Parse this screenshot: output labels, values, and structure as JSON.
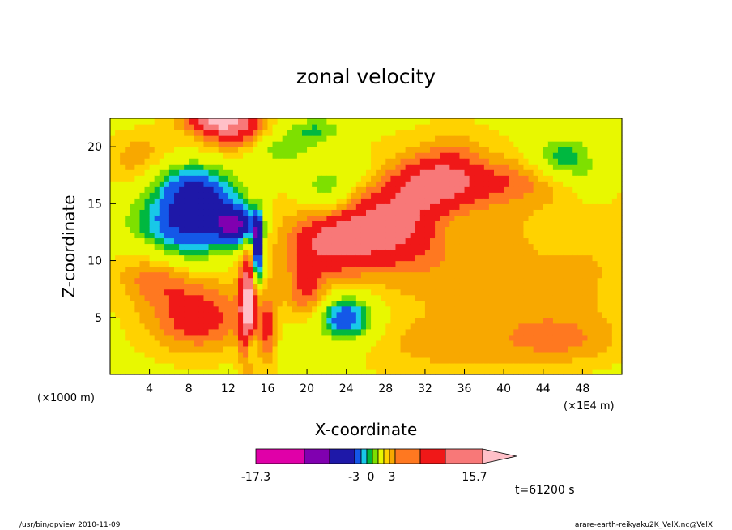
{
  "chart_data": {
    "type": "heatmap",
    "title": "zonal velocity",
    "xlabel": "X-coordinate",
    "ylabel": "Z-coordinate",
    "x_unit_left": "(×1000 m)",
    "x_unit_right": "(×1E4 m)",
    "xlim": [
      0,
      52
    ],
    "ylim": [
      0,
      22.5
    ],
    "x_ticks": [
      4,
      8,
      12,
      16,
      20,
      24,
      28,
      32,
      36,
      40,
      44,
      48
    ],
    "y_ticks": [
      5,
      10,
      15,
      20
    ],
    "colorbar": {
      "levels": [
        -17.3,
        -3,
        0,
        3,
        15.7
      ],
      "labels": [
        "-17.3",
        "-3",
        "0",
        "3",
        "15.7"
      ],
      "colors": [
        "#e000a8",
        "#8000b0",
        "#1e18a8",
        "#1458e8",
        "#18c8e8",
        "#00b840",
        "#7ee000",
        "#e8f800",
        "#ffd200",
        "#f8a800",
        "#ff7820",
        "#f01818",
        "#f87878",
        "#ffc0c8"
      ]
    },
    "regions": [
      {
        "x": 32,
        "z": 11,
        "v": 3,
        "rx": 30,
        "rz": 11.5
      },
      {
        "x": 4,
        "z": 10,
        "v": 1.5,
        "rx": 4,
        "rz": 8
      },
      {
        "x": 44,
        "z": 8,
        "v": 1.5,
        "rx": 9,
        "rz": 5
      },
      {
        "x": 46,
        "z": 3,
        "v": 3,
        "rx": 6,
        "rz": 2.2
      },
      {
        "x": 34,
        "z": 2.5,
        "v": 2,
        "rx": 8,
        "rz": 2.5
      },
      {
        "x": 28,
        "z": 13,
        "v": 7,
        "rx": 6,
        "rz": 3.5
      },
      {
        "x": 33,
        "z": 17,
        "v": 6.5,
        "rx": 4.5,
        "rz": 2.3
      },
      {
        "x": 22,
        "z": 11.5,
        "v": 5,
        "rx": 4,
        "rz": 3
      },
      {
        "x": 40,
        "z": 17,
        "v": 3.5,
        "rx": 6,
        "rz": 2
      },
      {
        "x": 9,
        "z": 5,
        "v": 6,
        "rx": 4.5,
        "rz": 3
      },
      {
        "x": 5,
        "z": 8.5,
        "v": 3,
        "rx": 4,
        "rz": 2
      },
      {
        "x": 3,
        "z": 19,
        "v": 3,
        "rx": 4,
        "rz": 2.5
      },
      {
        "x": 11,
        "z": 22.5,
        "v": 10,
        "rx": 3.5,
        "rz": 1.2
      },
      {
        "x": 13,
        "z": 21,
        "v": 6,
        "rx": 4,
        "rz": 1.8
      },
      {
        "x": 6,
        "z": 13.5,
        "v": -7,
        "rx": 5,
        "rz": 2.6
      },
      {
        "x": 10,
        "z": 15,
        "v": -8.5,
        "rx": 4,
        "rz": 3
      },
      {
        "x": 8,
        "z": 11,
        "v": -3.5,
        "rx": 4,
        "rz": 2.5
      },
      {
        "x": 13,
        "z": 13,
        "v": -11,
        "rx": 2,
        "rz": 1.6
      },
      {
        "x": 7,
        "z": 17,
        "v": -5,
        "rx": 3.5,
        "rz": 2
      },
      {
        "x": 22,
        "z": 16,
        "v": -5.5,
        "rx": 3,
        "rz": 2.2
      },
      {
        "x": 17,
        "z": 20,
        "v": -5,
        "rx": 3.5,
        "rz": 1.6
      },
      {
        "x": 25,
        "z": 18,
        "v": -2,
        "rx": 3,
        "rz": 1.5
      },
      {
        "x": 24,
        "z": 5,
        "v": -7.5,
        "rx": 2.5,
        "rz": 1.7
      },
      {
        "x": 23.5,
        "z": 5.2,
        "v": -3,
        "rx": 4.5,
        "rz": 3
      },
      {
        "x": 35,
        "z": 12.5,
        "v": -1.5,
        "rx": 2.5,
        "rz": 1.8
      },
      {
        "x": 45,
        "z": 12,
        "v": -1.5,
        "rx": 2.4,
        "rz": 1.8
      },
      {
        "x": 46,
        "z": 19,
        "v": -5.5,
        "rx": 3,
        "rz": 2
      },
      {
        "x": 49,
        "z": 17,
        "v": -2,
        "rx": 2,
        "rz": 2
      },
      {
        "x": 35,
        "z": 20,
        "v": 2,
        "rx": 3,
        "rz": 2
      },
      {
        "x": 20,
        "z": 7,
        "v": 4.5,
        "rx": 2,
        "rz": 2.5
      },
      {
        "x": 19,
        "z": 3,
        "v": -2,
        "rx": 2,
        "rz": 1.5
      },
      {
        "x": 14,
        "z": 6,
        "v": 11,
        "rx": 0.8,
        "rz": 5
      },
      {
        "x": 15,
        "z": 11,
        "v": -14,
        "rx": 0.6,
        "rz": 3
      },
      {
        "x": 14.3,
        "z": 2.5,
        "v": -6,
        "rx": 0.6,
        "rz": 1.5
      },
      {
        "x": 16,
        "z": 4,
        "v": 5,
        "rx": 1,
        "rz": 3
      },
      {
        "x": 21,
        "z": 21.5,
        "v": -4,
        "rx": 3,
        "rz": 1.2
      }
    ]
  },
  "footer": {
    "left": "/usr/bin/gpview   2010-11-09",
    "right": "arare-earth-reikyaku2K_VelX.nc@VelX",
    "time": "t=61200 s"
  }
}
